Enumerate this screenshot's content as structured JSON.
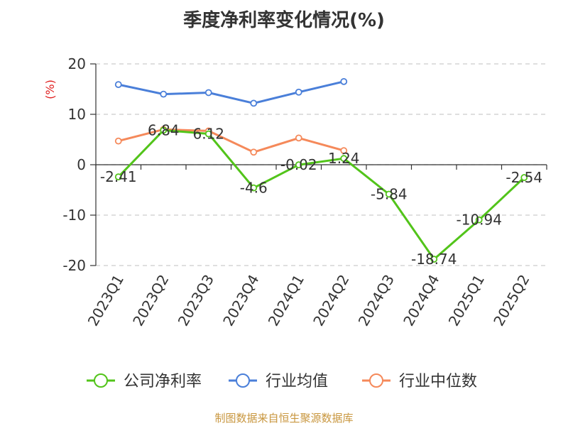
{
  "title": "季度净利率变化情况(%)",
  "source": "制图数据来自恒生聚源数据库",
  "chart_data": {
    "type": "line",
    "title": "季度净利率变化情况(%)",
    "ylabel": "(%)",
    "xlabel": "",
    "ylim": [
      -20,
      20
    ],
    "yticks": [
      20,
      10,
      0,
      -10,
      -20
    ],
    "grid": true,
    "legend_position": "bottom",
    "categories": [
      "2023Q1",
      "2023Q2",
      "2023Q3",
      "2023Q4",
      "2024Q1",
      "2024Q2",
      "2024Q3",
      "2024Q4",
      "2025Q1",
      "2025Q2"
    ],
    "series": [
      {
        "name": "公司净利率",
        "color": "#52c41a",
        "values": [
          -2.41,
          6.84,
          6.12,
          -4.6,
          -0.02,
          1.24,
          -5.84,
          -18.74,
          -10.94,
          -2.54
        ],
        "labels": [
          "-2.41",
          "6.84",
          "6.12",
          "-4.6",
          "-0.02",
          "1.24",
          "-5.84",
          "-18.74",
          "-10.94",
          "-2.54"
        ]
      },
      {
        "name": "行业均值",
        "color": "#4a7fd9",
        "values": [
          15.9,
          14.0,
          14.3,
          12.2,
          14.4,
          16.5,
          null,
          null,
          null,
          null
        ]
      },
      {
        "name": "行业中位数",
        "color": "#f5895a",
        "values": [
          4.7,
          7.0,
          6.7,
          2.5,
          5.3,
          2.8,
          null,
          null,
          null,
          null
        ]
      }
    ]
  }
}
